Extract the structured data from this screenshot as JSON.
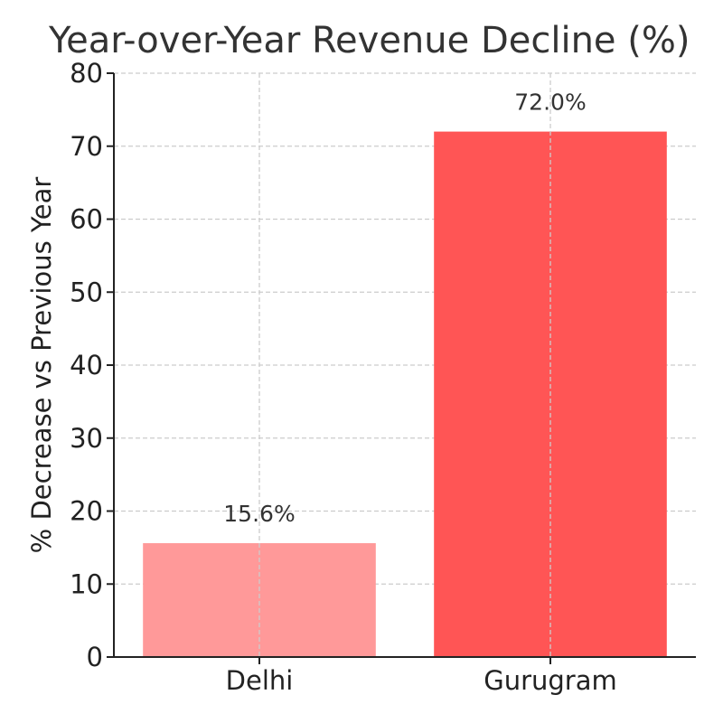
{
  "chart_data": {
    "type": "bar",
    "title": "Year-over-Year Revenue Decline (%)",
    "xlabel": "",
    "ylabel": "% Decrease vs Previous Year",
    "categories": [
      "Delhi",
      "Gurugram"
    ],
    "values": [
      15.6,
      72.0
    ],
    "data_labels": [
      "15.6%",
      "72.0%"
    ],
    "bar_colors": [
      "#ff9999",
      "#ff5555"
    ],
    "ylim": [
      0,
      80
    ],
    "yticks": [
      0,
      10,
      20,
      30,
      40,
      50,
      60,
      70,
      80
    ],
    "grid": true,
    "legend": "none"
  }
}
